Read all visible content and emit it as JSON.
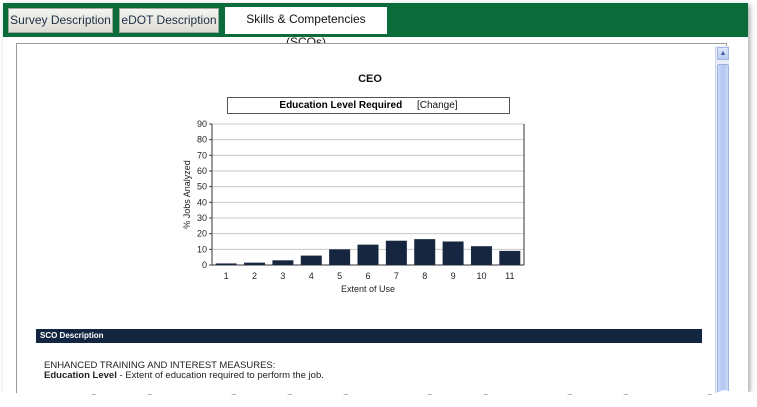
{
  "tabs": [
    {
      "label": "Survey Description"
    },
    {
      "label": "eDOT Description"
    },
    {
      "label": "Skills & Competencies (SCOs)"
    }
  ],
  "chart_header": {
    "title": "CEO",
    "filter_label": "Education Level Required",
    "change_link": "[Change]"
  },
  "chart_data": {
    "type": "bar",
    "xlabel": "Extent of Use",
    "ylabel": "% Jobs Analyzed",
    "categories": [
      "1",
      "2",
      "3",
      "4",
      "5",
      "6",
      "7",
      "8",
      "9",
      "10",
      "11"
    ],
    "values": [
      1,
      1.5,
      3,
      6,
      10,
      13,
      15.5,
      16.5,
      15,
      12,
      9
    ],
    "ylim": [
      0,
      90
    ],
    "yticks": [
      0,
      10,
      20,
      30,
      40,
      50,
      60,
      70,
      80,
      90
    ],
    "grid": true,
    "bar_color": "#162640"
  },
  "sco_section": {
    "header": "SCO Description",
    "heading": "ENHANCED TRAINING AND INTEREST MEASURES:",
    "term": "Education Level",
    "definition": " - Extent of education required to perform the job."
  },
  "colors": {
    "tabbar": "#0b6b3a",
    "section_header": "#132641"
  }
}
